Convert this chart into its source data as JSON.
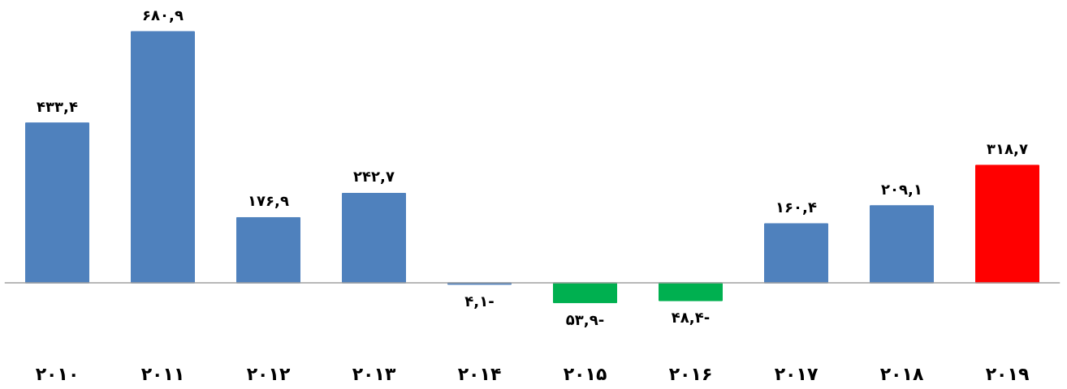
{
  "chart_data": {
    "type": "bar",
    "categories": [
      "۲۰۱۰",
      "۲۰۱۱",
      "۲۰۱۲",
      "۲۰۱۳",
      "۲۰۱۴",
      "۲۰۱۵",
      "۲۰۱۶",
      "۲۰۱۷",
      "۲۰۱۸",
      "۲۰۱۹"
    ],
    "values": [
      433.4,
      680.9,
      176.9,
      242.7,
      -4.1,
      -53.9,
      -48.4,
      160.4,
      209.1,
      318.7
    ],
    "colors": [
      "#4f81bd",
      "#4f81bd",
      "#4f81bd",
      "#4f81bd",
      "#4f81bd",
      "#00b050",
      "#00b050",
      "#4f81bd",
      "#4f81bd",
      "#ff0000"
    ],
    "value_labels": [
      "۴۳۳,۴",
      "۶۸۰,۹",
      "۱۷۶,۹",
      "۲۴۲,۷",
      "-۴,۱",
      "-۵۳,۹",
      "-۴۸,۴",
      "۱۶۰,۴",
      "۲۰۹,۱",
      "۳۱۸,۷"
    ],
    "grid": false
  }
}
